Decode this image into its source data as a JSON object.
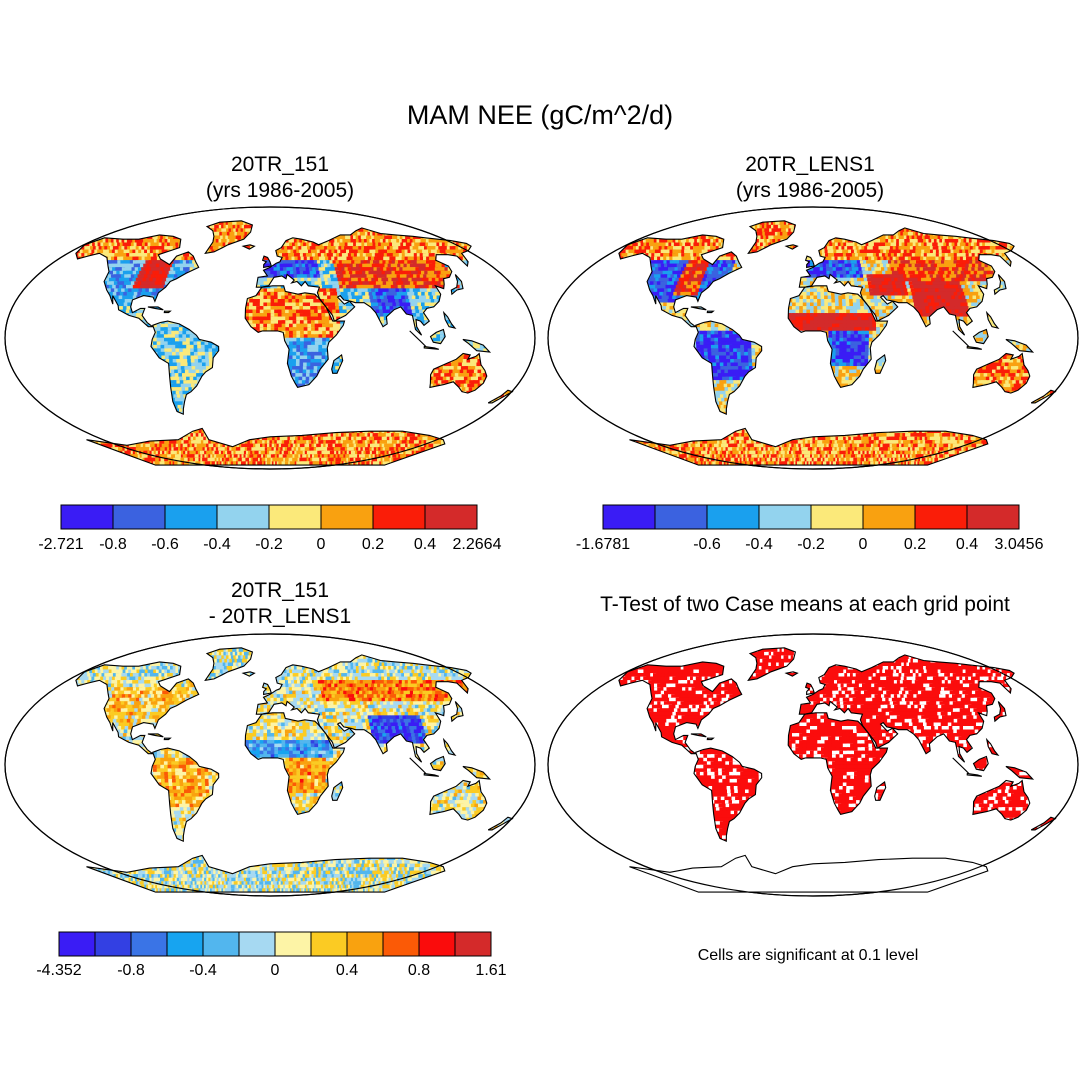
{
  "main_title": "MAM NEE (gC/m^2/d)",
  "panels": [
    {
      "id": "a",
      "title_line1": "20TR_151",
      "title_line2": "(yrs 1986-2005)",
      "field": "case1"
    },
    {
      "id": "b",
      "title_line1": "20TR_LENS1",
      "title_line2": "(yrs 1986-2005)",
      "field": "case2"
    },
    {
      "id": "c",
      "title_line1": "20TR_151",
      "title_line2": "- 20TR_LENS1",
      "field": "diff"
    },
    {
      "id": "d",
      "title_line1": "T-Test of two Case means at each grid point",
      "title_line2": "",
      "field": "ttest"
    }
  ],
  "colorbars": [
    {
      "id": "cb1",
      "colors": [
        "#3a1cf5",
        "#3b62e0",
        "#1aa0ee",
        "#93d3ee",
        "#fbe97a",
        "#f9a110",
        "#fa1d08",
        "#d42a2a"
      ],
      "labels": [
        "-2.721",
        "-0.8",
        "-0.6",
        "-0.4",
        "-0.2",
        "0",
        "0.2",
        "0.4",
        "2.2664"
      ]
    },
    {
      "id": "cb2",
      "colors": [
        "#3a1cf5",
        "#3b62e0",
        "#1aa0ee",
        "#93d3ee",
        "#fbe97a",
        "#f9a110",
        "#fa1d08",
        "#d42a2a"
      ],
      "labels": [
        "-1.6781",
        "",
        "-0.6",
        "-0.4",
        "-0.2",
        "0",
        "0.2",
        "0.4",
        "3.0456"
      ]
    },
    {
      "id": "cb3",
      "colors": [
        "#3a1cf5",
        "#3340e3",
        "#3a74e6",
        "#17a4f0",
        "#52b6ee",
        "#a6d9f2",
        "#fdf4a6",
        "#fbcb23",
        "#f9a20f",
        "#fb5a06",
        "#fa0c0c",
        "#d42a2a"
      ],
      "labels": [
        "-4.352",
        "",
        "-0.8",
        "",
        "-0.4",
        "",
        "0",
        "",
        "0.4",
        "",
        "0.8",
        "",
        "1.61"
      ]
    }
  ],
  "significance_note": "Cells are significant at 0.1 level",
  "colors": {
    "significant": "#fb0c0c",
    "not_significant": "#ffffff",
    "coast": "#000000"
  }
}
